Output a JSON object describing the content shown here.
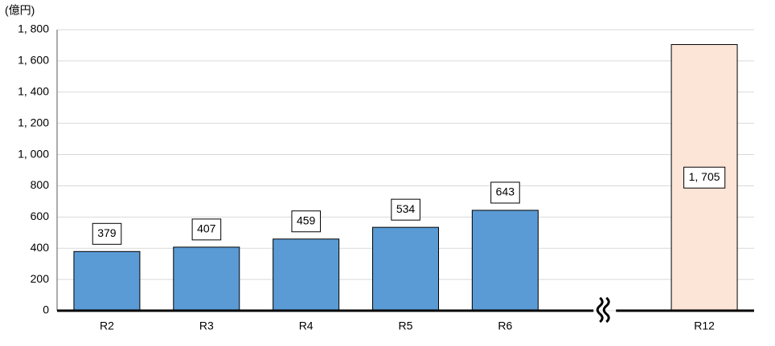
{
  "chart_data": {
    "type": "bar",
    "y_label": "(億円)",
    "categories": [
      "R2",
      "R3",
      "R4",
      "R5",
      "R6",
      null,
      "R12"
    ],
    "values": [
      379,
      407,
      459,
      534,
      643,
      null,
      1705
    ],
    "value_labels": [
      "379",
      "407",
      "459",
      "534",
      "643",
      null,
      "1, 705"
    ],
    "colors": [
      "#5b9bd5",
      "#5b9bd5",
      "#5b9bd5",
      "#5b9bd5",
      "#5b9bd5",
      null,
      "#fce4d6"
    ],
    "ylim": [
      0,
      1800
    ],
    "yticks": [
      0,
      200,
      400,
      600,
      800,
      {
        "value": 1000,
        "label": "1, 000"
      },
      {
        "value": 1200,
        "label": "1, 200"
      },
      {
        "value": 1400,
        "label": "1, 400"
      },
      {
        "value": 1600,
        "label": "1, 600"
      },
      {
        "value": 1800,
        "label": "1, 800"
      }
    ],
    "grid": true
  }
}
